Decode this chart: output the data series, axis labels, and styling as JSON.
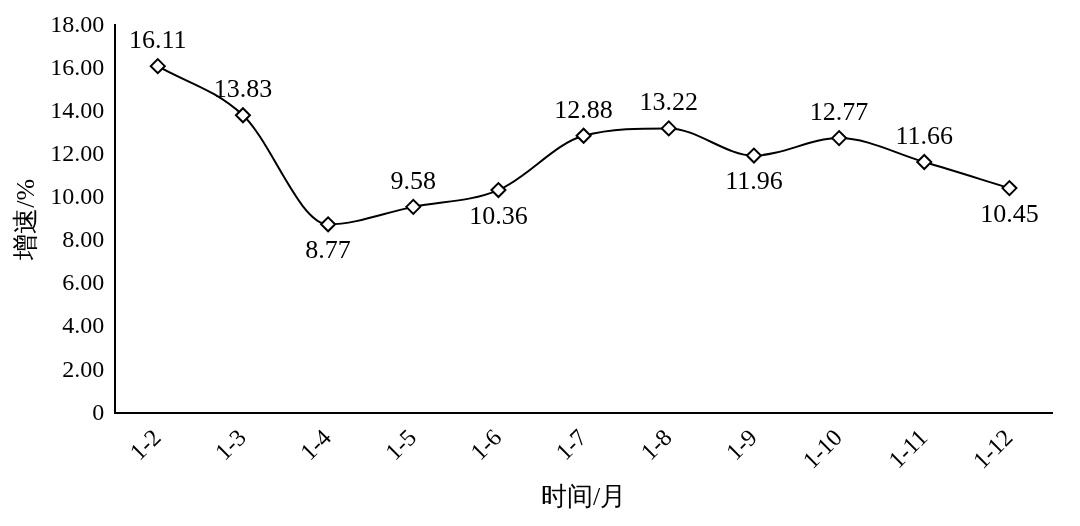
{
  "chart_data": {
    "type": "line",
    "xlabel": "时间/月",
    "ylabel": "增速/%",
    "categories": [
      "1-2",
      "1-3",
      "1-4",
      "1-5",
      "1-6",
      "1-7",
      "1-8",
      "1-9",
      "1-10",
      "1-11",
      "1-12"
    ],
    "series": [
      {
        "color": "#000000",
        "values": [
          16.11,
          13.83,
          8.77,
          9.58,
          10.36,
          12.88,
          13.22,
          11.96,
          12.77,
          11.66,
          10.45
        ]
      }
    ],
    "ylim": [
      0,
      18
    ],
    "yticks": [
      0,
      {
        "value": 2,
        "label": "2.00"
      },
      {
        "value": 4,
        "label": "4.00"
      },
      {
        "value": 6,
        "label": "6.00"
      },
      {
        "value": 8,
        "label": "8.00"
      },
      {
        "value": 10,
        "label": "10.00"
      },
      {
        "value": 12,
        "label": "12.00"
      },
      {
        "value": 14,
        "label": "14.00"
      },
      {
        "value": 16,
        "label": "16.00"
      },
      {
        "value": 18,
        "label": "18.00"
      }
    ],
    "grid": false,
    "legend": false,
    "marker": "diamond",
    "line_style": "solid",
    "data_labels": true
  }
}
